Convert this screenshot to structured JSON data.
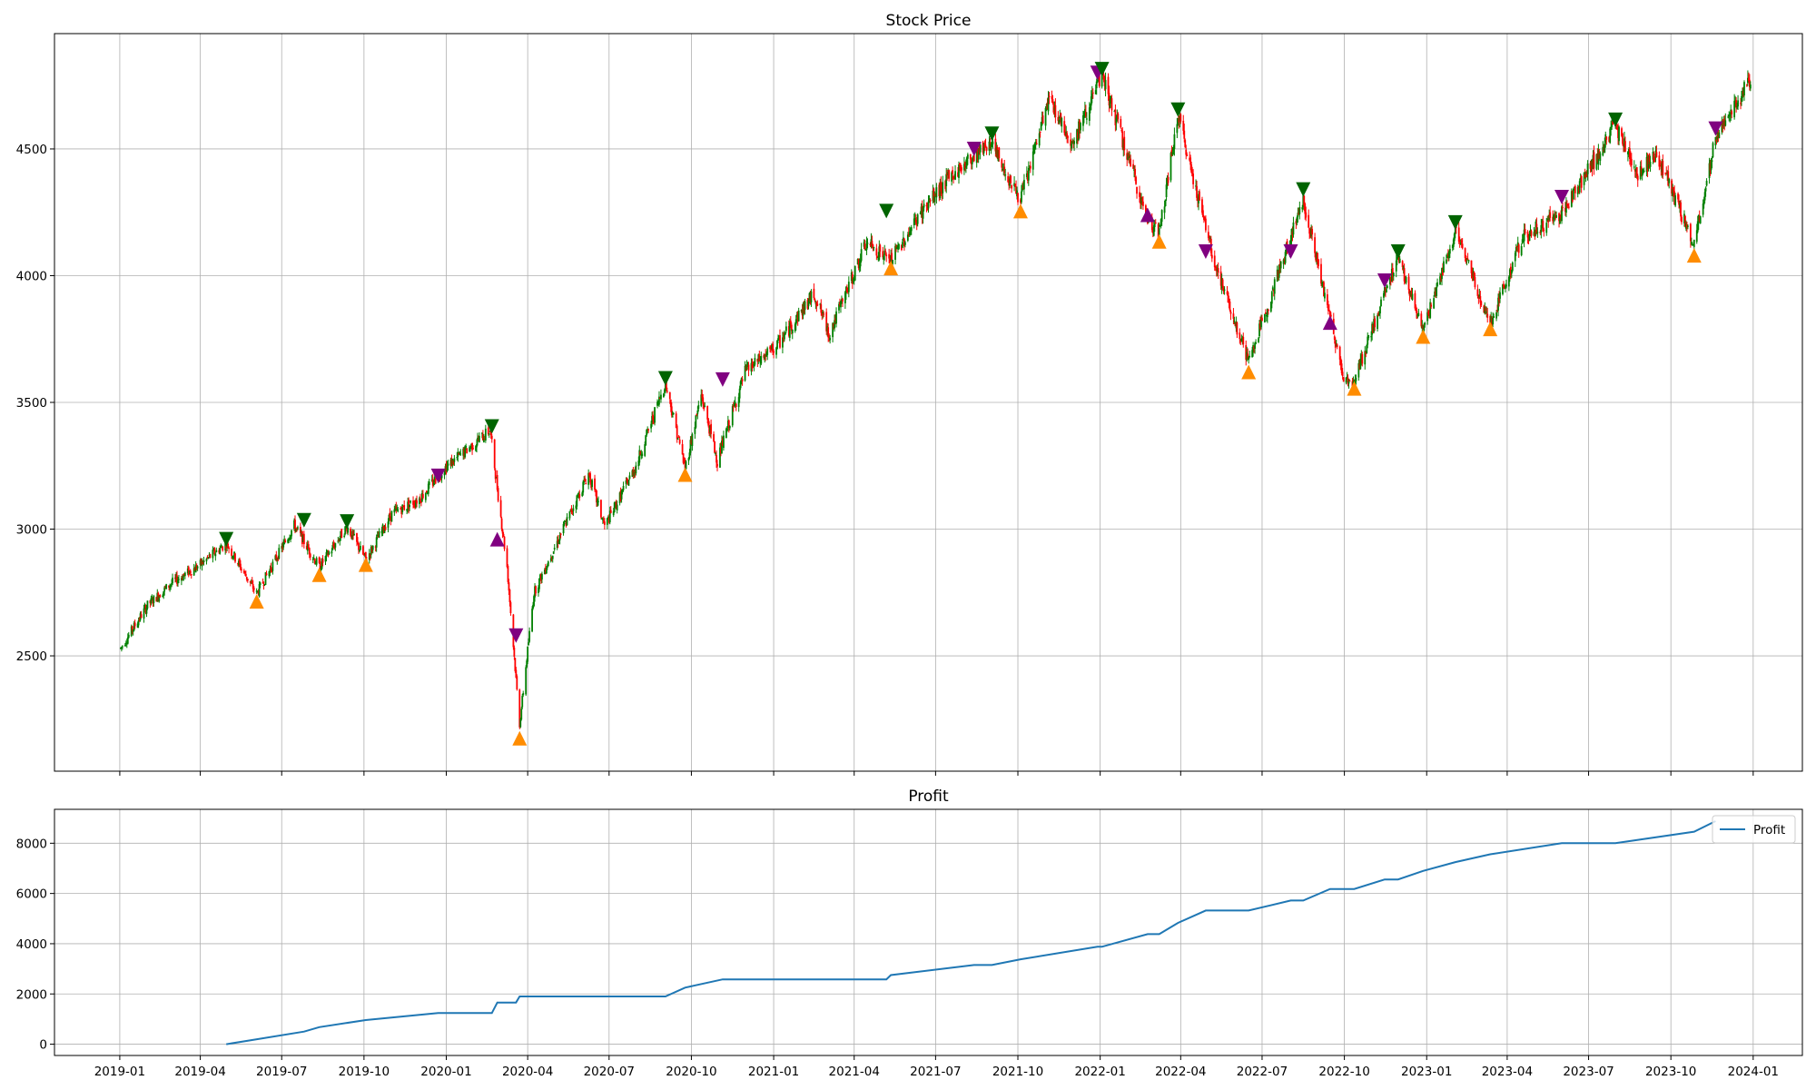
{
  "chart_data": [
    {
      "type": "candlestick",
      "title": "Stock Price",
      "xlabel": "",
      "ylabel": "",
      "x_ticks": [
        "2019-01",
        "2019-04",
        "2019-07",
        "2019-10",
        "2020-01",
        "2020-04",
        "2020-07",
        "2020-10",
        "2021-01",
        "2021-04",
        "2021-07",
        "2021-10",
        "2022-01",
        "2022-04",
        "2022-07",
        "2022-10",
        "2023-01",
        "2023-04",
        "2023-07",
        "2023-10",
        "2024-01"
      ],
      "y_ticks": [
        2500,
        3000,
        3500,
        4000,
        4500
      ],
      "xlim": [
        "2018-10-20",
        "2024-02-25"
      ],
      "ylim": [
        2045,
        4955
      ],
      "grid": true,
      "colors": {
        "up": "#008000",
        "down": "#ff0000",
        "sell": "#006400",
        "buy": "#ff8c00",
        "signal": "#800080"
      },
      "price_path": [
        [
          "2019-01-02",
          2530
        ],
        [
          "2019-02-01",
          2700
        ],
        [
          "2019-03-01",
          2790
        ],
        [
          "2019-04-01",
          2860
        ],
        [
          "2019-04-30",
          2945
        ],
        [
          "2019-06-03",
          2745
        ],
        [
          "2019-07-15",
          3015
        ],
        [
          "2019-08-12",
          2850
        ],
        [
          "2019-09-12",
          3010
        ],
        [
          "2019-10-03",
          2880
        ],
        [
          "2019-11-01",
          3060
        ],
        [
          "2019-12-02",
          3120
        ],
        [
          "2019-12-30",
          3240
        ],
        [
          "2020-02-19",
          3390
        ],
        [
          "2020-03-09",
          2850
        ],
        [
          "2020-03-23",
          2230
        ],
        [
          "2020-04-08",
          2750
        ],
        [
          "2020-06-08",
          3220
        ],
        [
          "2020-06-26",
          3010
        ],
        [
          "2020-07-31",
          3250
        ],
        [
          "2020-09-02",
          3580
        ],
        [
          "2020-09-24",
          3240
        ],
        [
          "2020-10-12",
          3530
        ],
        [
          "2020-10-30",
          3270
        ],
        [
          "2020-11-30",
          3620
        ],
        [
          "2021-01-04",
          3720
        ],
        [
          "2021-02-15",
          3930
        ],
        [
          "2021-03-04",
          3770
        ],
        [
          "2021-04-15",
          4130
        ],
        [
          "2021-05-12",
          4060
        ],
        [
          "2021-06-15",
          4250
        ],
        [
          "2021-07-15",
          4380
        ],
        [
          "2021-08-30",
          4530
        ],
        [
          "2021-10-04",
          4300
        ],
        [
          "2021-11-05",
          4700
        ],
        [
          "2021-12-01",
          4520
        ],
        [
          "2022-01-03",
          4790
        ],
        [
          "2022-02-23",
          4220
        ],
        [
          "2022-03-08",
          4170
        ],
        [
          "2022-03-29",
          4630
        ],
        [
          "2022-05-09",
          4050
        ],
        [
          "2022-06-16",
          3660
        ],
        [
          "2022-08-16",
          4300
        ],
        [
          "2022-09-30",
          3600
        ],
        [
          "2022-10-12",
          3580
        ],
        [
          "2022-11-30",
          4080
        ],
        [
          "2022-12-28",
          3780
        ],
        [
          "2023-02-02",
          4180
        ],
        [
          "2023-03-13",
          3810
        ],
        [
          "2023-04-18",
          4150
        ],
        [
          "2023-06-01",
          4250
        ],
        [
          "2023-07-31",
          4590
        ],
        [
          "2023-08-25",
          4400
        ],
        [
          "2023-09-15",
          4480
        ],
        [
          "2023-10-27",
          4120
        ],
        [
          "2023-11-20",
          4550
        ],
        [
          "2023-12-29",
          4770
        ]
      ],
      "markers": [
        {
          "date": "2019-04-30",
          "value": 2960,
          "type": "sell"
        },
        {
          "date": "2019-06-03",
          "value": 2715,
          "type": "buy"
        },
        {
          "date": "2019-07-26",
          "value": 3035,
          "type": "sell"
        },
        {
          "date": "2019-08-12",
          "value": 2820,
          "type": "buy"
        },
        {
          "date": "2019-09-12",
          "value": 3030,
          "type": "sell"
        },
        {
          "date": "2019-10-03",
          "value": 2860,
          "type": "buy"
        },
        {
          "date": "2019-12-23",
          "value": 3210,
          "type": "signal-down"
        },
        {
          "date": "2020-02-21",
          "value": 3405,
          "type": "sell"
        },
        {
          "date": "2020-02-27",
          "value": 2960,
          "type": "signal-up"
        },
        {
          "date": "2020-03-19",
          "value": 2580,
          "type": "signal-down"
        },
        {
          "date": "2020-03-23",
          "value": 2175,
          "type": "buy"
        },
        {
          "date": "2020-09-02",
          "value": 3595,
          "type": "sell"
        },
        {
          "date": "2020-09-24",
          "value": 3215,
          "type": "buy"
        },
        {
          "date": "2020-11-05",
          "value": 3590,
          "type": "signal-down"
        },
        {
          "date": "2021-05-07",
          "value": 4255,
          "type": "sell"
        },
        {
          "date": "2021-05-12",
          "value": 4030,
          "type": "buy"
        },
        {
          "date": "2021-08-13",
          "value": 4500,
          "type": "signal-down"
        },
        {
          "date": "2021-09-02",
          "value": 4560,
          "type": "sell"
        },
        {
          "date": "2021-10-04",
          "value": 4255,
          "type": "buy"
        },
        {
          "date": "2021-12-29",
          "value": 4800,
          "type": "signal-down"
        },
        {
          "date": "2022-01-03",
          "value": 4815,
          "type": "sell"
        },
        {
          "date": "2022-02-23",
          "value": 4240,
          "type": "signal-up"
        },
        {
          "date": "2022-03-08",
          "value": 4135,
          "type": "buy"
        },
        {
          "date": "2022-03-29",
          "value": 4655,
          "type": "sell"
        },
        {
          "date": "2022-04-29",
          "value": 4095,
          "type": "signal-down"
        },
        {
          "date": "2022-06-16",
          "value": 3620,
          "type": "buy"
        },
        {
          "date": "2022-08-02",
          "value": 4095,
          "type": "signal-down"
        },
        {
          "date": "2022-08-16",
          "value": 4340,
          "type": "sell"
        },
        {
          "date": "2022-09-15",
          "value": 3815,
          "type": "signal-up"
        },
        {
          "date": "2022-10-12",
          "value": 3555,
          "type": "buy"
        },
        {
          "date": "2022-11-15",
          "value": 3980,
          "type": "signal-down"
        },
        {
          "date": "2022-11-30",
          "value": 4095,
          "type": "sell"
        },
        {
          "date": "2022-12-28",
          "value": 3760,
          "type": "buy"
        },
        {
          "date": "2023-02-02",
          "value": 4210,
          "type": "sell"
        },
        {
          "date": "2023-03-13",
          "value": 3790,
          "type": "buy"
        },
        {
          "date": "2023-06-01",
          "value": 4310,
          "type": "signal-down"
        },
        {
          "date": "2023-07-31",
          "value": 4615,
          "type": "sell"
        },
        {
          "date": "2023-10-27",
          "value": 4080,
          "type": "buy"
        },
        {
          "date": "2023-11-20",
          "value": 4580,
          "type": "signal-down"
        }
      ]
    },
    {
      "type": "line",
      "title": "Profit",
      "xlabel": "",
      "ylabel": "",
      "x_ticks": [
        "2019-01",
        "2019-04",
        "2019-07",
        "2019-10",
        "2020-01",
        "2020-04",
        "2020-07",
        "2020-10",
        "2021-01",
        "2021-04",
        "2021-07",
        "2021-10",
        "2022-01",
        "2022-04",
        "2022-07",
        "2022-10",
        "2023-01",
        "2023-04",
        "2023-07",
        "2023-10",
        "2024-01"
      ],
      "y_ticks": [
        0,
        2000,
        4000,
        6000,
        8000
      ],
      "xlim": [
        "2018-10-20",
        "2024-02-25"
      ],
      "ylim": [
        -450,
        9350
      ],
      "grid": true,
      "legend": {
        "position": "top-right",
        "entries": [
          "Profit"
        ]
      },
      "series": [
        {
          "name": "Profit",
          "color": "#1f77b4",
          "points": [
            [
              "2019-04-30",
              0
            ],
            [
              "2019-07-26",
              500
            ],
            [
              "2019-08-12",
              680
            ],
            [
              "2019-10-03",
              960
            ],
            [
              "2019-12-23",
              1240
            ],
            [
              "2020-02-21",
              1240
            ],
            [
              "2020-02-27",
              1660
            ],
            [
              "2020-03-19",
              1660
            ],
            [
              "2020-03-23",
              1900
            ],
            [
              "2020-09-02",
              1900
            ],
            [
              "2020-09-24",
              2250
            ],
            [
              "2020-11-05",
              2580
            ],
            [
              "2021-05-07",
              2580
            ],
            [
              "2021-05-12",
              2750
            ],
            [
              "2021-08-13",
              3150
            ],
            [
              "2021-09-02",
              3150
            ],
            [
              "2021-10-04",
              3380
            ],
            [
              "2021-12-29",
              3880
            ],
            [
              "2022-01-03",
              3880
            ],
            [
              "2022-02-23",
              4380
            ],
            [
              "2022-03-08",
              4380
            ],
            [
              "2022-03-29",
              4830
            ],
            [
              "2022-04-29",
              5320
            ],
            [
              "2022-06-16",
              5320
            ],
            [
              "2022-08-02",
              5720
            ],
            [
              "2022-08-16",
              5720
            ],
            [
              "2022-09-15",
              6180
            ],
            [
              "2022-10-12",
              6180
            ],
            [
              "2022-11-15",
              6560
            ],
            [
              "2022-11-30",
              6560
            ],
            [
              "2022-12-28",
              6900
            ],
            [
              "2023-02-02",
              7250
            ],
            [
              "2023-03-13",
              7560
            ],
            [
              "2023-06-01",
              8000
            ],
            [
              "2023-07-31",
              8000
            ],
            [
              "2023-10-27",
              8460
            ],
            [
              "2023-11-20",
              8880
            ]
          ]
        }
      ]
    }
  ]
}
